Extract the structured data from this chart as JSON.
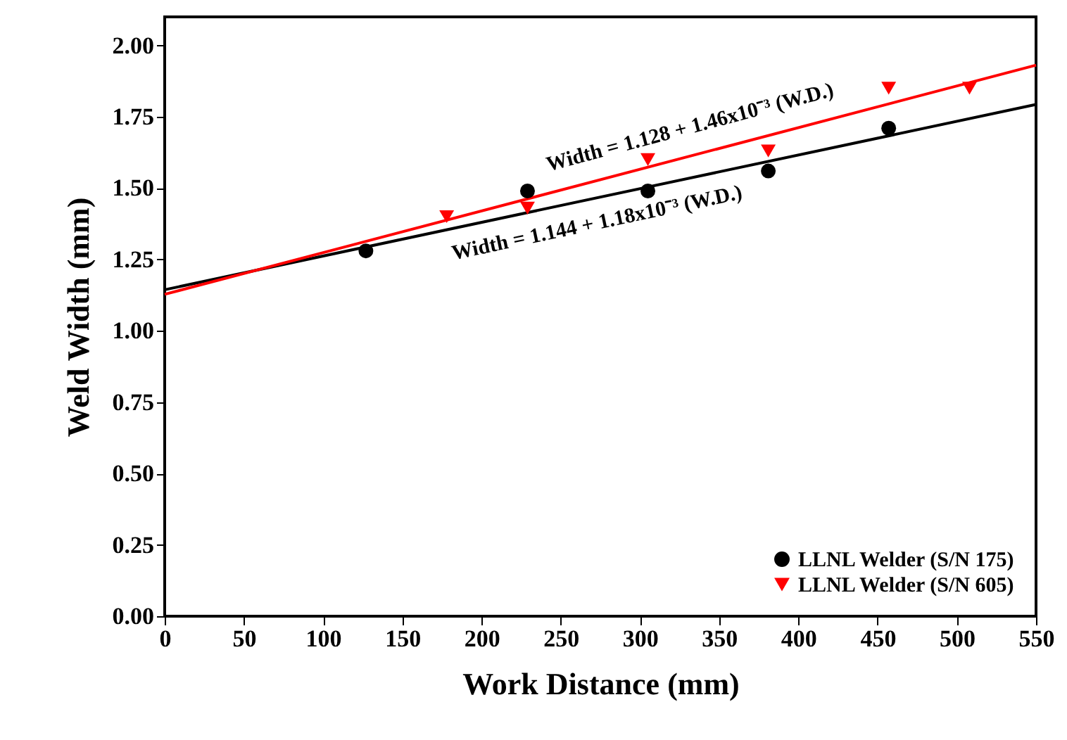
{
  "chart_data": {
    "type": "scatter",
    "xlabel": "Work Distance (mm)",
    "ylabel": "Weld Width (mm)",
    "xlim": [
      0,
      550
    ],
    "xticks": [
      0,
      50,
      100,
      150,
      200,
      250,
      300,
      350,
      400,
      450,
      500,
      550
    ],
    "ylim": [
      0,
      2.1
    ],
    "yticks": [
      {
        "value": 0,
        "label": "0.00"
      },
      0.25,
      {
        "value": 0.5,
        "label": "0.50"
      },
      0.75,
      {
        "value": 1,
        "label": "1.00"
      },
      1.25,
      {
        "value": 1.5,
        "label": "1.50"
      },
      1.75,
      {
        "value": 2,
        "label": "2.00"
      }
    ],
    "legend": "bottom right",
    "grid": false,
    "series": [
      {
        "name": "LLNL Welder (S/N 175)",
        "color": "#000000",
        "marker": "circle",
        "x": [
          127,
          229,
          305,
          381,
          457
        ],
        "values": [
          1.28,
          1.49,
          1.49,
          1.56,
          1.71
        ]
      },
      {
        "name": "LLNL Welder (S/N 605)",
        "color": "#ff0000",
        "marker": "triangle",
        "x": [
          178,
          229,
          305,
          381,
          457,
          508
        ],
        "values": [
          1.4,
          1.43,
          1.6,
          1.63,
          1.85,
          1.85
        ]
      },
      {
        "type": "line",
        "color": "#000000",
        "x": [
          0,
          550
        ],
        "values": [
          1.144,
          1.793
        ]
      },
      {
        "type": "line",
        "color": "#ff0000",
        "x": [
          0,
          550
        ],
        "values": [
          1.128,
          1.931
        ]
      }
    ],
    "annotations": [
      "Width = 1.128 + 1.46x10⁻³ (W.D.)",
      "Width = 1.144 + 1.18x10⁻³ (W.D.)"
    ]
  }
}
